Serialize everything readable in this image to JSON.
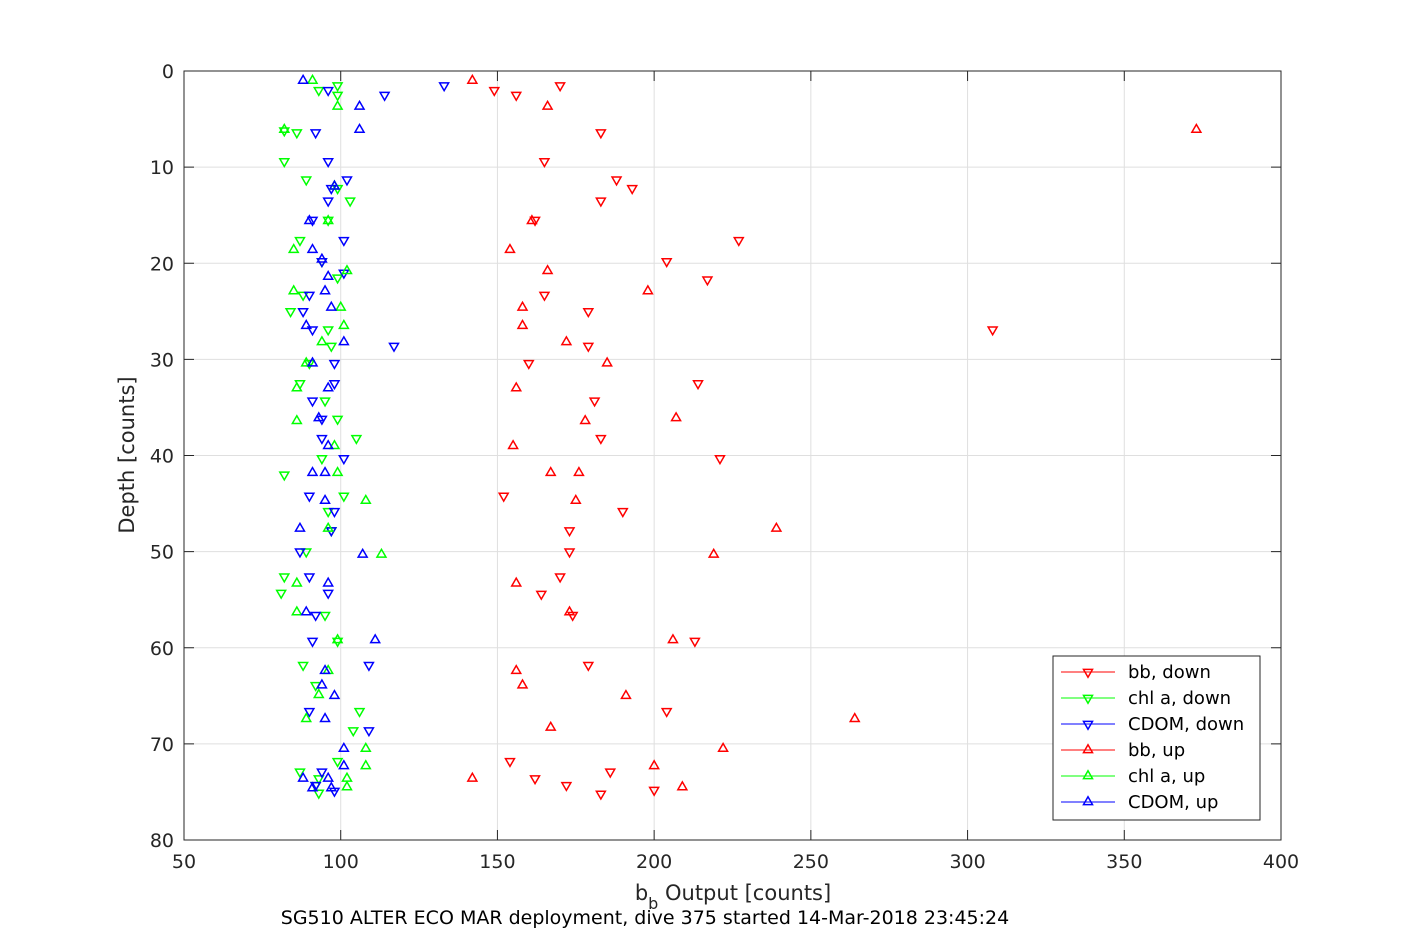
{
  "chart_data": {
    "type": "scatter",
    "caption": "SG510 ALTER ECO MAR deployment, dive 375 started 14-Mar-2018 23:45:24",
    "xlabel": {
      "main": "b",
      "sub": "b",
      "rest": " Output [counts]"
    },
    "ylabel": "Depth [counts]",
    "xlim": [
      50,
      400
    ],
    "ylim": [
      0,
      80
    ],
    "y_reversed": true,
    "grid": true,
    "legend_position": "bottom-right",
    "xticks": [
      "50",
      "100",
      "150",
      "200",
      "250",
      "300",
      "350",
      "400"
    ],
    "yticks": [
      "0",
      "10",
      "20",
      "30",
      "40",
      "50",
      "60",
      "70",
      "80"
    ],
    "series": [
      {
        "name": "bb, down",
        "color": "#ff0000",
        "marker": "triangle-down",
        "points": [
          [
            170,
            1.5
          ],
          [
            149,
            2
          ],
          [
            156,
            2.5
          ],
          [
            183,
            6.4
          ],
          [
            165,
            9.4
          ],
          [
            188,
            11.3
          ],
          [
            193,
            12.2
          ],
          [
            183,
            13.5
          ],
          [
            162,
            15.5
          ],
          [
            227,
            17.6
          ],
          [
            204,
            19.8
          ],
          [
            217,
            21.7
          ],
          [
            165,
            23.3
          ],
          [
            179,
            25
          ],
          [
            308,
            26.9
          ],
          [
            179,
            28.6
          ],
          [
            160,
            30.4
          ],
          [
            214,
            32.5
          ],
          [
            181,
            34.3
          ],
          [
            183,
            38.2
          ],
          [
            221,
            40.3
          ],
          [
            152,
            44.2
          ],
          [
            190,
            45.8
          ],
          [
            173,
            47.8
          ],
          [
            173,
            50
          ],
          [
            170,
            52.6
          ],
          [
            164,
            54.4
          ],
          [
            174,
            56.6
          ],
          [
            213,
            59.3
          ],
          [
            179,
            61.8
          ],
          [
            204,
            66.6
          ],
          [
            154,
            71.8
          ],
          [
            186,
            72.9
          ],
          [
            162,
            73.6
          ],
          [
            172,
            74.3
          ],
          [
            200,
            74.8
          ],
          [
            183,
            75.2
          ]
        ]
      },
      {
        "name": "chl a, down",
        "color": "#00ff00",
        "marker": "triangle-down",
        "points": [
          [
            99,
            1.5
          ],
          [
            93,
            2
          ],
          [
            99,
            2.5
          ],
          [
            82,
            6.2
          ],
          [
            86,
            6.4
          ],
          [
            82,
            9.4
          ],
          [
            89,
            11.3
          ],
          [
            99,
            12.2
          ],
          [
            103,
            13.5
          ],
          [
            96,
            15.5
          ],
          [
            87,
            17.6
          ],
          [
            94,
            19.8
          ],
          [
            99,
            21.5
          ],
          [
            88,
            23.3
          ],
          [
            84,
            25
          ],
          [
            96,
            26.9
          ],
          [
            97,
            28.6
          ],
          [
            90,
            30.4
          ],
          [
            87,
            32.5
          ],
          [
            95,
            34.3
          ],
          [
            99,
            36.2
          ],
          [
            105,
            38.2
          ],
          [
            94,
            40.3
          ],
          [
            82,
            42
          ],
          [
            101,
            44.2
          ],
          [
            96,
            45.8
          ],
          [
            97,
            47.8
          ],
          [
            89,
            50
          ],
          [
            82,
            52.6
          ],
          [
            81,
            54.3
          ],
          [
            95,
            56.6
          ],
          [
            99,
            59.3
          ],
          [
            88,
            61.8
          ],
          [
            92,
            63.9
          ],
          [
            106,
            66.6
          ],
          [
            104,
            68.6
          ],
          [
            99,
            71.8
          ],
          [
            87,
            72.9
          ],
          [
            93,
            73.6
          ],
          [
            92,
            74.3
          ],
          [
            93,
            75.1
          ]
        ]
      },
      {
        "name": "CDOM, down",
        "color": "#0000ff",
        "marker": "triangle-down",
        "points": [
          [
            96,
            2
          ],
          [
            114,
            2.5
          ],
          [
            133,
            1.5
          ],
          [
            92,
            6.4
          ],
          [
            96,
            9.4
          ],
          [
            102,
            11.3
          ],
          [
            97,
            12.2
          ],
          [
            96,
            13.5
          ],
          [
            91,
            15.5
          ],
          [
            101,
            17.6
          ],
          [
            94,
            19.8
          ],
          [
            101,
            21
          ],
          [
            90,
            23.3
          ],
          [
            88,
            25
          ],
          [
            91,
            26.9
          ],
          [
            117,
            28.6
          ],
          [
            98,
            30.4
          ],
          [
            98,
            32.5
          ],
          [
            91,
            34.3
          ],
          [
            94,
            36.2
          ],
          [
            94,
            38.2
          ],
          [
            101,
            40.3
          ],
          [
            90,
            44.2
          ],
          [
            98,
            45.8
          ],
          [
            97,
            47.8
          ],
          [
            87,
            50
          ],
          [
            90,
            52.6
          ],
          [
            96,
            54.3
          ],
          [
            92,
            56.6
          ],
          [
            91,
            59.3
          ],
          [
            109,
            61.8
          ],
          [
            90,
            66.6
          ],
          [
            109,
            68.6
          ],
          [
            94,
            72.9
          ],
          [
            92,
            74.3
          ],
          [
            98,
            74.9
          ]
        ]
      },
      {
        "name": "bb, up",
        "color": "#ff0000",
        "marker": "triangle-up",
        "points": [
          [
            142,
            1
          ],
          [
            166,
            3.7
          ],
          [
            373,
            6.1
          ],
          [
            161,
            15.6
          ],
          [
            154,
            18.6
          ],
          [
            166,
            20.8
          ],
          [
            198,
            22.9
          ],
          [
            158,
            24.6
          ],
          [
            158,
            26.5
          ],
          [
            172,
            28.2
          ],
          [
            185,
            30.4
          ],
          [
            156,
            33
          ],
          [
            207,
            36.1
          ],
          [
            178,
            36.4
          ],
          [
            155,
            39
          ],
          [
            167,
            41.8
          ],
          [
            176,
            41.8
          ],
          [
            175,
            44.7
          ],
          [
            239,
            47.6
          ],
          [
            219,
            50.3
          ],
          [
            156,
            53.3
          ],
          [
            173,
            56.3
          ],
          [
            206,
            59.2
          ],
          [
            156,
            62.4
          ],
          [
            158,
            63.9
          ],
          [
            191,
            65
          ],
          [
            264,
            67.4
          ],
          [
            167,
            68.3
          ],
          [
            222,
            70.5
          ],
          [
            200,
            72.3
          ],
          [
            142,
            73.6
          ],
          [
            209,
            74.5
          ]
        ]
      },
      {
        "name": "chl a, up",
        "color": "#00ff00",
        "marker": "triangle-up",
        "points": [
          [
            91,
            1
          ],
          [
            99,
            3.7
          ],
          [
            82,
            6.1
          ],
          [
            98,
            12
          ],
          [
            96,
            15.6
          ],
          [
            85,
            18.6
          ],
          [
            102,
            20.8
          ],
          [
            85,
            22.9
          ],
          [
            100,
            24.6
          ],
          [
            101,
            26.5
          ],
          [
            94,
            28.2
          ],
          [
            89,
            30.4
          ],
          [
            86,
            33
          ],
          [
            86,
            36.4
          ],
          [
            98,
            39
          ],
          [
            99,
            41.8
          ],
          [
            108,
            44.7
          ],
          [
            96,
            47.6
          ],
          [
            113,
            50.3
          ],
          [
            86,
            53.3
          ],
          [
            86,
            56.3
          ],
          [
            99,
            59.2
          ],
          [
            96,
            62.4
          ],
          [
            93,
            64.9
          ],
          [
            89,
            67.4
          ],
          [
            108,
            70.5
          ],
          [
            108,
            72.3
          ],
          [
            102,
            73.6
          ],
          [
            102,
            74.5
          ]
        ]
      },
      {
        "name": "CDOM, up",
        "color": "#0000ff",
        "marker": "triangle-up",
        "points": [
          [
            88,
            1
          ],
          [
            106,
            3.7
          ],
          [
            106,
            6.1
          ],
          [
            98,
            12
          ],
          [
            90,
            15.6
          ],
          [
            91,
            18.6
          ],
          [
            94,
            19.6
          ],
          [
            96,
            21.4
          ],
          [
            95,
            22.9
          ],
          [
            97,
            24.6
          ],
          [
            89,
            26.5
          ],
          [
            101,
            28.2
          ],
          [
            91,
            30.4
          ],
          [
            96,
            33
          ],
          [
            93,
            36.1
          ],
          [
            96,
            39
          ],
          [
            91,
            41.8
          ],
          [
            95,
            41.8
          ],
          [
            95,
            44.7
          ],
          [
            87,
            47.6
          ],
          [
            107,
            50.3
          ],
          [
            96,
            53.3
          ],
          [
            89,
            56.3
          ],
          [
            111,
            59.2
          ],
          [
            95,
            62.4
          ],
          [
            94,
            63.9
          ],
          [
            98,
            65
          ],
          [
            95,
            67.4
          ],
          [
            101,
            70.5
          ],
          [
            101,
            72.3
          ],
          [
            96,
            73.6
          ],
          [
            88,
            73.6
          ],
          [
            91,
            74.6
          ],
          [
            97,
            74.6
          ]
        ]
      }
    ]
  }
}
